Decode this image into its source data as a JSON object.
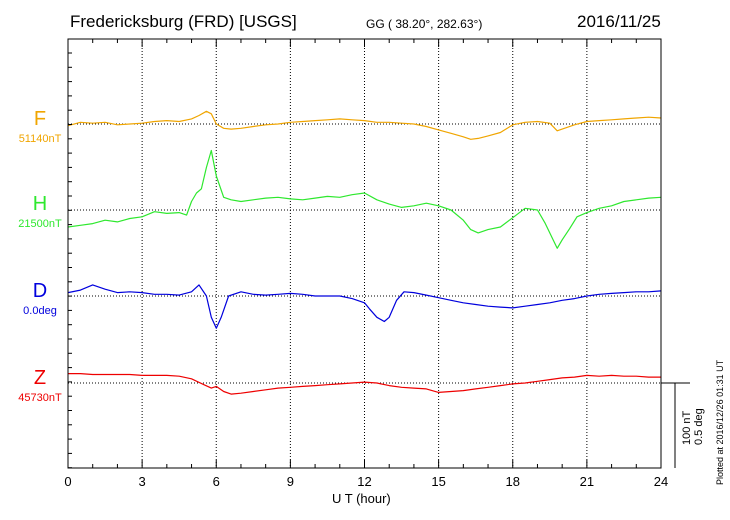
{
  "header": {
    "title": "Fredericksburg (FRD)  [USGS]",
    "coords": "GG ( 38.20°, 282.63°)",
    "date": "2016/11/25"
  },
  "scale": {
    "nt": "100 nT",
    "deg": "0.5 deg"
  },
  "footer_note": "Plotted at 2016/12/26 01:31 UT",
  "chart_data": {
    "type": "line",
    "xlabel": "U T (hour)",
    "xlim": [
      0,
      24
    ],
    "xticks": [
      "0",
      "3",
      "6",
      "9",
      "12",
      "15",
      "18",
      "21",
      "24"
    ],
    "ylabel": "",
    "grid": true,
    "series": [
      {
        "name": "F",
        "baseline": "51140nT",
        "color": "#f0a500",
        "x": [
          0,
          0.5,
          1,
          1.5,
          2,
          2.5,
          3,
          3.5,
          4,
          4.5,
          5,
          5.3,
          5.6,
          5.8,
          6,
          6.3,
          6.6,
          7,
          7.5,
          8,
          8.5,
          9,
          9.5,
          10,
          10.5,
          11,
          11.5,
          12,
          12.5,
          13,
          13.5,
          14,
          14.5,
          15,
          15.5,
          16,
          16.3,
          16.6,
          17,
          17.5,
          18,
          18.5,
          19,
          19.5,
          19.8,
          20,
          20.5,
          21,
          21.5,
          22,
          22.5,
          23,
          23.5,
          24
        ],
        "y": [
          -2,
          2,
          1,
          2,
          -1,
          0,
          1,
          3,
          4,
          3,
          6,
          10,
          15,
          12,
          0,
          -5,
          -6,
          -5,
          -3,
          -1,
          0,
          2,
          3,
          4,
          5,
          6,
          5,
          4,
          2,
          2,
          1,
          0,
          -3,
          -7,
          -11,
          -15,
          -18,
          -17,
          -14,
          -10,
          -1,
          2,
          3,
          1,
          -8,
          -6,
          -1,
          3,
          4,
          5,
          6,
          7,
          8,
          7
        ]
      },
      {
        "name": "H",
        "baseline": "21500nT",
        "color": "#2ee82e",
        "x": [
          0,
          0.5,
          1,
          1.5,
          2,
          2.5,
          3,
          3.5,
          4,
          4.5,
          4.8,
          5,
          5.2,
          5.4,
          5.6,
          5.8,
          6,
          6.3,
          6.6,
          7,
          7.5,
          8,
          8.5,
          9,
          9.5,
          10,
          10.5,
          11,
          11.5,
          12,
          12.5,
          13,
          13.5,
          14,
          14.5,
          15,
          15.5,
          16,
          16.3,
          16.6,
          17,
          17.5,
          18,
          18.5,
          19,
          19.3,
          19.6,
          19.8,
          20,
          20.3,
          20.6,
          21,
          21.5,
          22,
          22.5,
          23,
          23.5,
          24
        ],
        "y": [
          -20,
          -18,
          -16,
          -12,
          -14,
          -10,
          -8,
          -2,
          -4,
          -3,
          -6,
          10,
          20,
          25,
          50,
          70,
          40,
          15,
          12,
          10,
          12,
          14,
          15,
          13,
          12,
          14,
          16,
          15,
          18,
          20,
          12,
          7,
          3,
          5,
          8,
          5,
          0,
          -12,
          -23,
          -27,
          -23,
          -20,
          -9,
          2,
          0,
          -15,
          -33,
          -45,
          -35,
          -22,
          -8,
          -3,
          2,
          5,
          10,
          12,
          14,
          15
        ]
      },
      {
        "name": "D",
        "baseline": "0.0deg",
        "color": "#0000dd",
        "x": [
          0,
          0.5,
          1,
          1.5,
          2,
          2.5,
          3,
          3.5,
          4,
          4.5,
          5,
          5.3,
          5.6,
          5.8,
          6,
          6.2,
          6.5,
          7,
          7.5,
          8,
          8.5,
          9,
          9.5,
          10,
          10.5,
          11,
          11.5,
          12,
          12.2,
          12.5,
          12.8,
          13,
          13.3,
          13.6,
          14,
          14.5,
          15,
          15.5,
          16,
          16.5,
          17,
          17.5,
          18,
          18.5,
          19,
          19.5,
          20,
          20.5,
          21,
          21.5,
          22,
          22.5,
          23,
          23.5,
          24
        ],
        "y": [
          4,
          7,
          13,
          8,
          4,
          5,
          4,
          2,
          2,
          1,
          5,
          13,
          0,
          -25,
          -38,
          -25,
          0,
          5,
          2,
          1,
          2,
          3,
          2,
          0,
          0,
          0,
          -3,
          -8,
          -15,
          -25,
          -30,
          -25,
          -5,
          5,
          4,
          1,
          -2,
          -5,
          -8,
          -10,
          -12,
          -13,
          -14,
          -12,
          -10,
          -8,
          -5,
          -3,
          0,
          2,
          3,
          4,
          5,
          5,
          6
        ]
      },
      {
        "name": "Z",
        "baseline": "45730nT",
        "color": "#ee0000",
        "x": [
          0,
          0.5,
          1,
          1.5,
          2,
          2.5,
          3,
          3.5,
          4,
          4.5,
          5,
          5.5,
          5.8,
          6,
          6.3,
          6.6,
          7,
          7.5,
          8,
          8.5,
          9,
          9.5,
          10,
          10.5,
          11,
          11.5,
          12,
          12.5,
          13,
          13.5,
          14,
          14.5,
          15,
          15.5,
          16,
          16.5,
          17,
          17.5,
          18,
          18.5,
          19,
          19.5,
          20,
          20.5,
          21,
          21.5,
          22,
          22.5,
          23,
          23.5,
          24
        ],
        "y": [
          11,
          11,
          10,
          10,
          10,
          10,
          9,
          9,
          9,
          8,
          5,
          -2,
          -6,
          -4,
          -10,
          -13,
          -12,
          -10,
          -8,
          -6,
          -5,
          -4,
          -3,
          -2,
          -1,
          0,
          1,
          0,
          -3,
          -5,
          -6,
          -7,
          -11,
          -10,
          -9,
          -7,
          -5,
          -3,
          -1,
          0,
          2,
          4,
          6,
          7,
          9,
          8,
          9,
          8,
          8,
          7,
          7
        ]
      }
    ]
  }
}
